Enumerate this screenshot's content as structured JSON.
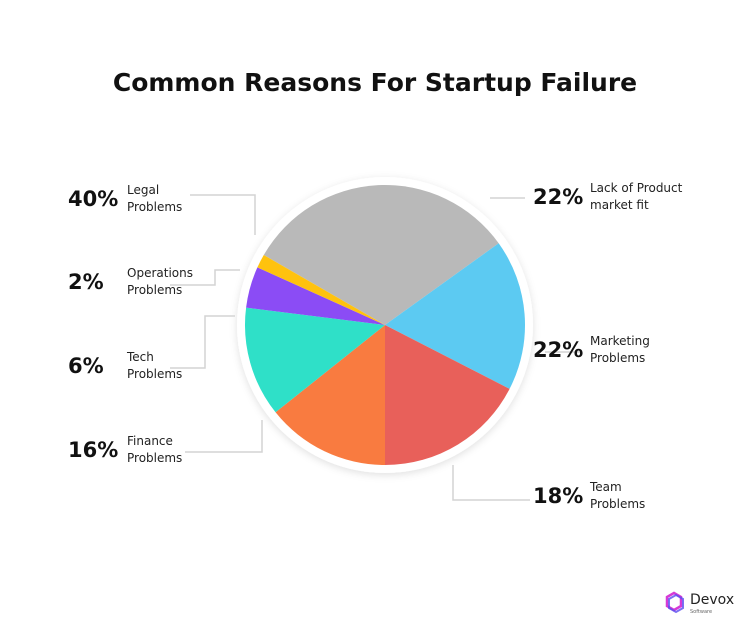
{
  "chart_data": {
    "type": "pie",
    "title": "Common Reasons For Startup Failure",
    "categories": [
      "Legal Problems",
      "Lack of Product market fit",
      "Marketing Problems",
      "Team Problems",
      "Finance Problems",
      "Tech Problems",
      "Operations Problems"
    ],
    "values": [
      40,
      22,
      22,
      18,
      16,
      6,
      2
    ],
    "value_labels": [
      "40%",
      "22%",
      "22%",
      "18%",
      "16%",
      "6%",
      "2%"
    ],
    "colors": [
      "#b9b9b9",
      "#5ccaf2",
      "#e8605a",
      "#f97b40",
      "#2fe0c8",
      "#8b4cf5",
      "#ffc20e"
    ]
  },
  "branding": {
    "name": "Devox",
    "tagline": "Software"
  }
}
